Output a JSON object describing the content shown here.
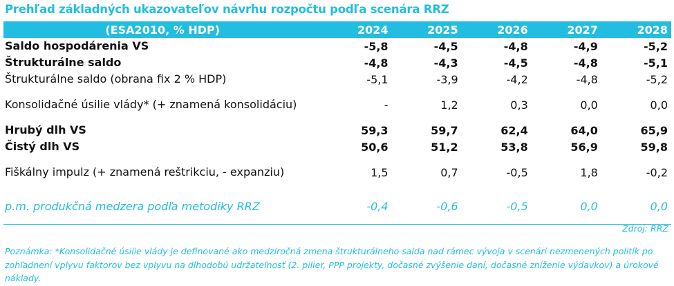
{
  "title": "Prehľad základných ukazovateľov návrhu rozpočtu podľa scenára RRZ",
  "header": {
    "unit": "(ESA2010, % HDP)",
    "years": [
      "2024",
      "2025",
      "2026",
      "2027",
      "2028"
    ]
  },
  "rows": [
    {
      "label": "Saldo hospodárenia VS",
      "values": [
        "-5,8",
        "-4,5",
        "-4,8",
        "-4,9",
        "-5,2"
      ]
    },
    {
      "label": "Štrukturálne saldo",
      "values": [
        "-4,8",
        "-4,3",
        "-4,5",
        "-4,8",
        "-5,1"
      ]
    },
    {
      "label": "Štrukturálne saldo (obrana fix 2 % HDP)",
      "values": [
        "-5,1",
        "-3,9",
        "-4,2",
        "-4,8",
        "-5,2"
      ]
    },
    {
      "label": "Konsolidačné úsilie vlády* (+ znamená konsolidáciu)",
      "values": [
        "-",
        "1,2",
        "0,3",
        "0,0",
        "0,0"
      ]
    },
    {
      "label": "Hrubý dlh VS",
      "values": [
        "59,3",
        "59,7",
        "62,4",
        "64,0",
        "65,9"
      ]
    },
    {
      "label": "Čistý dlh VS",
      "values": [
        "50,6",
        "51,2",
        "53,8",
        "56,9",
        "59,8"
      ]
    },
    {
      "label": "Fiškálny impulz (+ znamená reštrikciu, - expanziu)",
      "values": [
        "1,5",
        "0,7",
        "-0,5",
        "1,8",
        "-0,2"
      ]
    },
    {
      "label": "p.m. produkčná medzera podľa metodiky RRZ",
      "values": [
        "-0,4",
        "-0,6",
        "-0,5",
        "0,0",
        "0,0"
      ]
    }
  ],
  "source": "Zdroj: RRZ",
  "note": "Poznámka: *Konsolidačné úsilie vlády je definované ako medziročná zmena štrukturálneho salda nad rámec vývoja v scenári nezmenených politík po zohľadnení vplyvu faktorov bez vplyvu na dlhodobú udržateľnosť (2. pilier, PPP projekty, dočasné zvýšenie daní, dočasné zníženie výdavkov) a úrokové náklady.",
  "colors": {
    "accent": "#22bde0",
    "text": "#111111"
  }
}
